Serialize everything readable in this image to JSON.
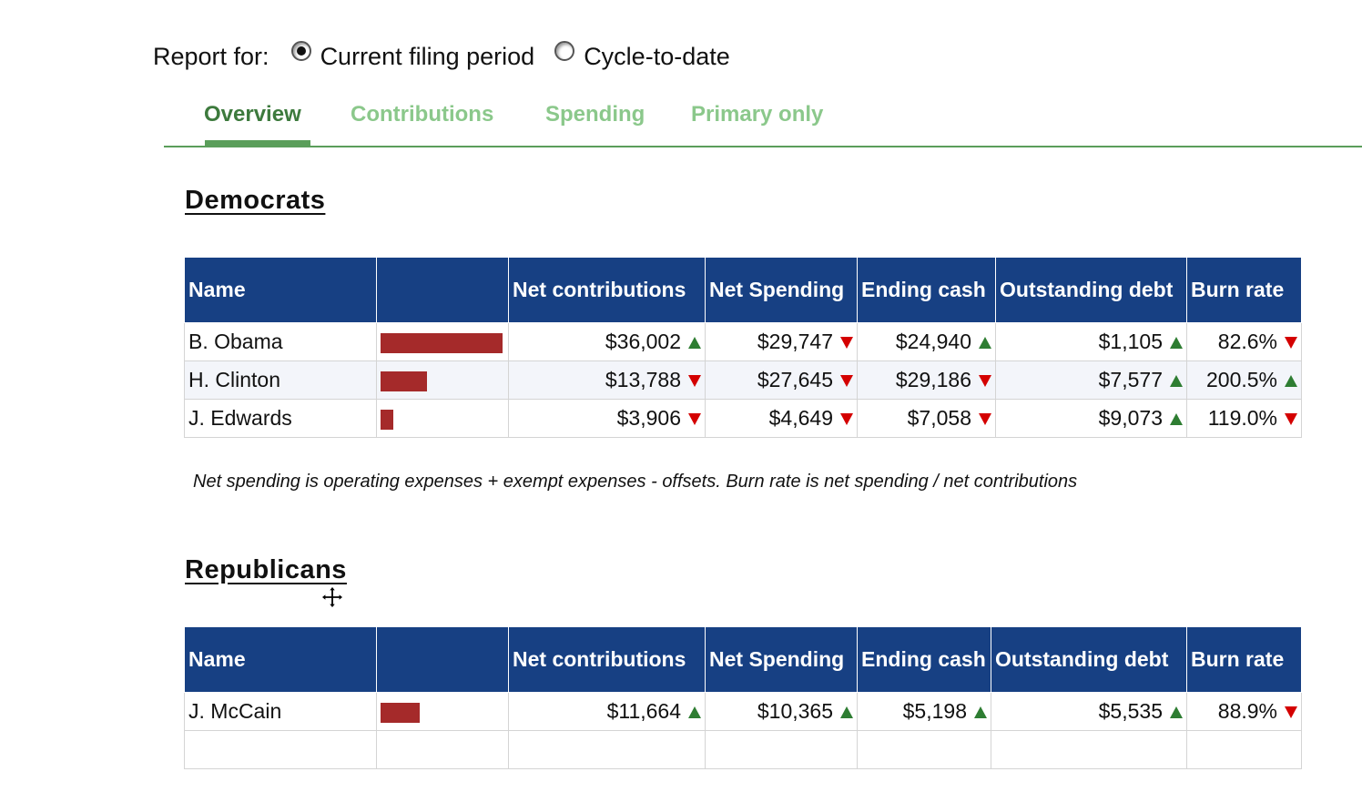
{
  "report_for": {
    "label": "Report for:",
    "options": [
      {
        "label": "Current filing period",
        "selected": true
      },
      {
        "label": "Cycle-to-date",
        "selected": false
      }
    ]
  },
  "tabs": [
    {
      "label": "Overview",
      "active": true
    },
    {
      "label": "Contributions",
      "active": false
    },
    {
      "label": "Spending",
      "active": false
    },
    {
      "label": "Primary only",
      "active": false
    }
  ],
  "columns": {
    "name": "Name",
    "net_contributions": "Net contributions",
    "net_spending": "Net Spending",
    "ending_cash": "Ending cash",
    "outstanding_debt": "Outstanding debt",
    "burn_rate": "Burn rate"
  },
  "democrats": {
    "title": "Democrats",
    "rows": [
      {
        "name": "B. Obama",
        "bar_share": 1.0,
        "net_contributions": "$36,002",
        "net_contributions_trend": "up",
        "net_spending": "$29,747",
        "net_spending_trend": "down",
        "ending_cash": "$24,940",
        "ending_cash_trend": "up",
        "outstanding_debt": "$1,105",
        "outstanding_debt_trend": "up",
        "burn_rate": "82.6%",
        "burn_rate_trend": "down"
      },
      {
        "name": "H. Clinton",
        "bar_share": 0.383,
        "net_contributions": "$13,788",
        "net_contributions_trend": "down",
        "net_spending": "$27,645",
        "net_spending_trend": "down",
        "ending_cash": "$29,186",
        "ending_cash_trend": "down",
        "outstanding_debt": "$7,577",
        "outstanding_debt_trend": "up",
        "burn_rate": "200.5%",
        "burn_rate_trend": "up"
      },
      {
        "name": "J. Edwards",
        "bar_share": 0.108,
        "net_contributions": "$3,906",
        "net_contributions_trend": "down",
        "net_spending": "$4,649",
        "net_spending_trend": "down",
        "ending_cash": "$7,058",
        "ending_cash_trend": "down",
        "outstanding_debt": "$9,073",
        "outstanding_debt_trend": "up",
        "burn_rate": "119.0%",
        "burn_rate_trend": "down"
      }
    ]
  },
  "footnote": "Net spending is operating expenses + exempt expenses - offsets. Burn rate is net spending / net contributions",
  "republicans": {
    "title": "Republicans",
    "rows": [
      {
        "name": "J. McCain",
        "bar_share": 0.324,
        "net_contributions": "$11,664",
        "net_contributions_trend": "up",
        "net_spending": "$10,365",
        "net_spending_trend": "up",
        "ending_cash": "$5,198",
        "ending_cash_trend": "up",
        "outstanding_debt": "$5,535",
        "outstanding_debt_trend": "up",
        "burn_rate": "88.9%",
        "burn_rate_trend": "down"
      }
    ]
  },
  "colors": {
    "header_bg": "#174083",
    "bar": "#a52a2a",
    "trend_up": "#2e7d32",
    "trend_down": "#d40000",
    "tab_active": "#3d7a3d",
    "tab_inactive": "#8bc88b"
  }
}
